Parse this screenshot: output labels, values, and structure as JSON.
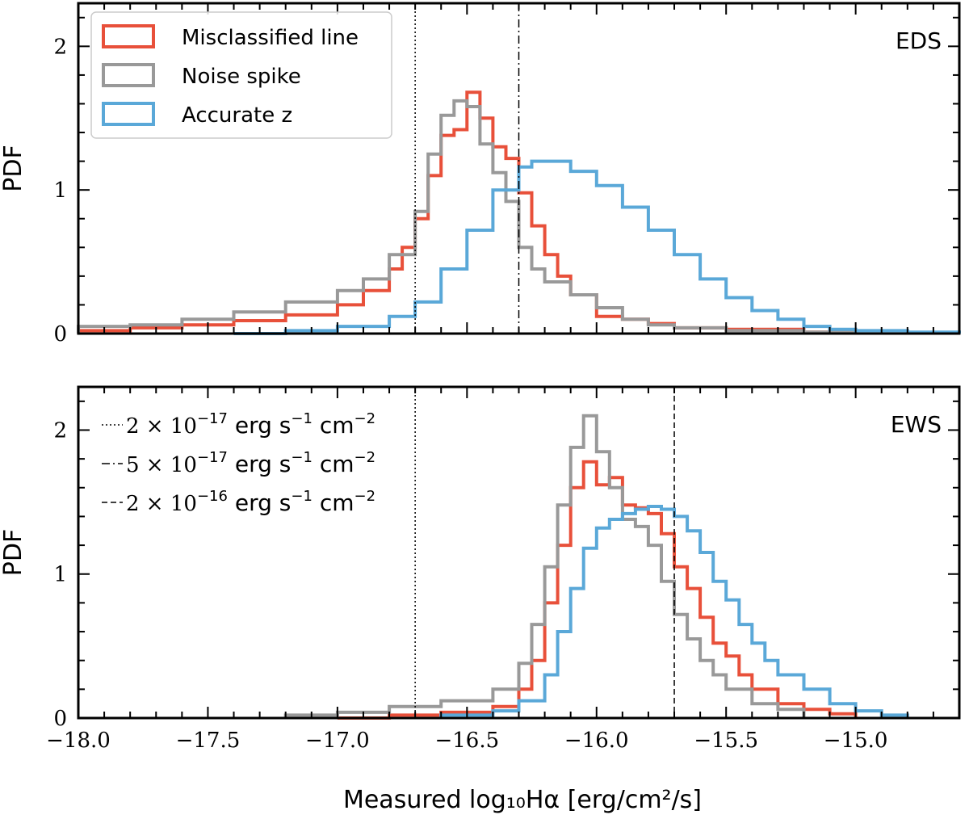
{
  "chart_data": [
    {
      "type": "histogram",
      "panel": "top",
      "corner_label": "EDS",
      "ylabel": "PDF",
      "xlabel": "",
      "xlim": [
        -18.0,
        -14.6
      ],
      "ylim": [
        0,
        2.3
      ],
      "yticks": [
        "0",
        "1",
        "2"
      ],
      "ytick_values": [
        0,
        1,
        2
      ],
      "vlines": [
        {
          "x": -16.7,
          "style": "dotted"
        },
        {
          "x": -16.3,
          "style": "dashdot"
        }
      ],
      "legend": {
        "placement": "top-left",
        "entries": [
          "Misclassified line",
          "Noise spike",
          "Accurate z"
        ]
      },
      "series": [
        {
          "name": "Misclassified line",
          "color": "#e8503a",
          "x": [
            -18.0,
            -17.8,
            -17.6,
            -17.4,
            -17.2,
            -17.0,
            -16.9,
            -16.8,
            -16.75,
            -16.7,
            -16.65,
            -16.6,
            -16.55,
            -16.5,
            -16.45,
            -16.4,
            -16.35,
            -16.3,
            -16.25,
            -16.2,
            -16.15,
            -16.1,
            -16.0,
            -15.9,
            -15.8,
            -15.7,
            -15.5,
            -15.2,
            -15.0
          ],
          "y": [
            0.02,
            0.04,
            0.06,
            0.09,
            0.13,
            0.2,
            0.3,
            0.45,
            0.6,
            0.8,
            1.1,
            1.38,
            1.42,
            1.68,
            1.5,
            1.3,
            1.22,
            0.98,
            0.75,
            0.55,
            0.4,
            0.27,
            0.12,
            0.1,
            0.07,
            0.04,
            0.03,
            0.01,
            0.0
          ]
        },
        {
          "name": "Noise spike",
          "color": "#999999",
          "x": [
            -18.0,
            -17.8,
            -17.6,
            -17.4,
            -17.2,
            -17.0,
            -16.9,
            -16.8,
            -16.7,
            -16.65,
            -16.6,
            -16.55,
            -16.5,
            -16.45,
            -16.4,
            -16.35,
            -16.3,
            -16.25,
            -16.2,
            -16.1,
            -16.0,
            -15.9,
            -15.8,
            -15.7,
            -15.5,
            -15.2,
            -15.0
          ],
          "y": [
            0.05,
            0.06,
            0.1,
            0.15,
            0.22,
            0.3,
            0.38,
            0.55,
            0.85,
            1.25,
            1.52,
            1.62,
            1.58,
            1.32,
            1.12,
            0.92,
            0.6,
            0.45,
            0.36,
            0.27,
            0.18,
            0.1,
            0.06,
            0.04,
            0.02,
            0.01,
            0.0
          ]
        },
        {
          "name": "Accurate z",
          "color": "#5aa8d8",
          "x": [
            -17.4,
            -17.2,
            -17.0,
            -16.8,
            -16.7,
            -16.6,
            -16.5,
            -16.4,
            -16.3,
            -16.25,
            -16.2,
            -16.1,
            -16.0,
            -15.9,
            -15.8,
            -15.7,
            -15.6,
            -15.5,
            -15.4,
            -15.3,
            -15.2,
            -15.1,
            -15.0,
            -14.8,
            -14.6
          ],
          "y": [
            0.0,
            0.02,
            0.05,
            0.12,
            0.22,
            0.45,
            0.72,
            1.0,
            1.16,
            1.2,
            1.2,
            1.13,
            1.03,
            0.88,
            0.72,
            0.55,
            0.38,
            0.25,
            0.16,
            0.1,
            0.05,
            0.03,
            0.02,
            0.01,
            0.0
          ]
        }
      ]
    },
    {
      "type": "histogram",
      "panel": "bottom",
      "corner_label": "EWS",
      "ylabel": "PDF",
      "xlabel": "Measured log₁₀Hα [erg/cm²/s]",
      "xlim": [
        -18.0,
        -14.6
      ],
      "ylim": [
        0,
        2.3
      ],
      "yticks": [
        "0",
        "1",
        "2"
      ],
      "ytick_values": [
        0,
        1,
        2
      ],
      "xticks": [
        "−18.0",
        "−17.5",
        "−17.0",
        "−16.5",
        "−16.0",
        "−15.5",
        "−15.0"
      ],
      "xtick_values": [
        -18.0,
        -17.5,
        -17.0,
        -16.5,
        -16.0,
        -15.5,
        -15.0
      ],
      "vlines": [
        {
          "x": -16.7,
          "style": "dotted"
        },
        {
          "x": -15.7,
          "style": "dashed"
        }
      ],
      "threshold_legend": {
        "placement": "top-left",
        "entries": [
          {
            "style": "dotted",
            "mant": "2 × 10",
            "exp": "−17",
            "unit_a": "erg s",
            "unit_a_exp": "−1",
            "unit_b": "cm",
            "unit_b_exp": "−2"
          },
          {
            "style": "dashdot",
            "mant": "5 × 10",
            "exp": "−17",
            "unit_a": "erg s",
            "unit_a_exp": "−1",
            "unit_b": "cm",
            "unit_b_exp": "−2"
          },
          {
            "style": "dashed",
            "mant": "2 × 10",
            "exp": "−16",
            "unit_a": "erg s",
            "unit_a_exp": "−1",
            "unit_b": "cm",
            "unit_b_exp": "−2"
          }
        ]
      },
      "series": [
        {
          "name": "Misclassified line",
          "color": "#e8503a",
          "x": [
            -17.0,
            -16.8,
            -16.6,
            -16.4,
            -16.3,
            -16.25,
            -16.2,
            -16.15,
            -16.1,
            -16.05,
            -16.0,
            -15.95,
            -15.9,
            -15.85,
            -15.8,
            -15.75,
            -15.7,
            -15.65,
            -15.6,
            -15.55,
            -15.5,
            -15.45,
            -15.4,
            -15.3,
            -15.2,
            -15.1,
            -15.0
          ],
          "y": [
            0.0,
            0.02,
            0.04,
            0.08,
            0.2,
            0.4,
            0.8,
            1.2,
            1.6,
            1.78,
            1.62,
            1.67,
            1.48,
            1.46,
            1.42,
            1.28,
            1.05,
            0.9,
            0.7,
            0.52,
            0.43,
            0.3,
            0.2,
            0.1,
            0.06,
            0.03,
            0.0
          ]
        },
        {
          "name": "Noise spike",
          "color": "#999999",
          "x": [
            -17.2,
            -17.0,
            -16.8,
            -16.6,
            -16.4,
            -16.3,
            -16.25,
            -16.2,
            -16.15,
            -16.1,
            -16.05,
            -16.0,
            -15.95,
            -15.9,
            -15.85,
            -15.8,
            -15.75,
            -15.7,
            -15.65,
            -15.6,
            -15.55,
            -15.5,
            -15.4,
            -15.3,
            -15.2
          ],
          "y": [
            0.02,
            0.04,
            0.08,
            0.12,
            0.2,
            0.38,
            0.65,
            1.05,
            1.48,
            1.88,
            2.1,
            1.85,
            1.6,
            1.38,
            1.33,
            1.2,
            0.95,
            0.72,
            0.55,
            0.4,
            0.3,
            0.2,
            0.1,
            0.06,
            0.0
          ]
        },
        {
          "name": "Accurate z",
          "color": "#5aa8d8",
          "x": [
            -16.6,
            -16.4,
            -16.3,
            -16.2,
            -16.15,
            -16.1,
            -16.05,
            -16.0,
            -15.95,
            -15.9,
            -15.85,
            -15.8,
            -15.75,
            -15.7,
            -15.65,
            -15.6,
            -15.55,
            -15.5,
            -15.45,
            -15.4,
            -15.35,
            -15.3,
            -15.2,
            -15.1,
            -15.0,
            -14.9,
            -14.8
          ],
          "y": [
            0.02,
            0.05,
            0.12,
            0.3,
            0.6,
            0.9,
            1.18,
            1.32,
            1.38,
            1.42,
            1.45,
            1.47,
            1.45,
            1.4,
            1.3,
            1.15,
            0.95,
            0.82,
            0.65,
            0.52,
            0.4,
            0.3,
            0.2,
            0.1,
            0.05,
            0.02,
            0.0
          ]
        }
      ]
    }
  ]
}
